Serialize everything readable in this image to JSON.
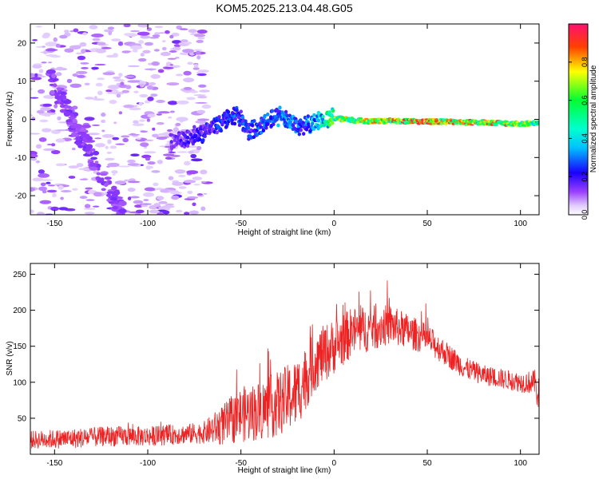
{
  "title": "KOM5.2025.213.04.48.G05",
  "chart_data": [
    {
      "type": "heatmap",
      "xlabel": "Height of straight line (km)",
      "ylabel": "Frequency (Hz)",
      "xlim": [
        -163,
        110
      ],
      "ylim": [
        -25,
        25
      ],
      "xticks": [
        -150,
        -100,
        -50,
        0,
        50,
        100
      ],
      "yticks": [
        -20,
        -10,
        0,
        10,
        20
      ],
      "colorbar": {
        "label": "Normalized spectral amplitude",
        "range": [
          0.0,
          1.0
        ],
        "ticks": [
          0.0,
          0.2,
          0.4,
          0.6,
          0.8
        ],
        "colors": [
          "#ffffff",
          "#cc88ff",
          "#7000ff",
          "#0000ff",
          "#00e5ff",
          "#00ff40",
          "#ffff00",
          "#ff0000",
          "#ff1493"
        ]
      },
      "track": {
        "x": [
          -88,
          -80,
          -72,
          -65,
          -58,
          -52,
          -46,
          -40,
          -34,
          -28,
          -22,
          -18,
          -12,
          -6,
          0,
          10,
          20,
          30,
          40,
          50,
          60,
          70,
          80,
          90,
          100,
          110
        ],
        "frequency": [
          -6,
          -5,
          -4,
          -2,
          0,
          1,
          -3,
          -2,
          0,
          1,
          -1,
          -2,
          -1,
          0,
          0.3,
          -0.2,
          -0.5,
          -0.4,
          -0.5,
          -0.6,
          -0.6,
          -0.8,
          -0.8,
          -1.0,
          -1.2,
          -1.0
        ],
        "amplitude": [
          0.15,
          0.2,
          0.22,
          0.25,
          0.3,
          0.3,
          0.28,
          0.3,
          0.3,
          0.35,
          0.35,
          0.3,
          0.4,
          0.5,
          0.7,
          0.75,
          0.8,
          0.85,
          0.9,
          0.9,
          0.85,
          0.88,
          0.9,
          0.85,
          0.8,
          0.6
        ]
      }
    },
    {
      "type": "line",
      "xlabel": "Height of straight line (km)",
      "ylabel": "SNR (v/v)",
      "xlim": [
        -163,
        110
      ],
      "ylim": [
        0,
        265
      ],
      "xticks": [
        -150,
        -100,
        -50,
        0,
        50,
        100
      ],
      "yticks": [
        50,
        100,
        150,
        200,
        250
      ],
      "color": "#ee2222",
      "envelope": {
        "x": [
          -163,
          -140,
          -120,
          -100,
          -80,
          -70,
          -60,
          -50,
          -40,
          -30,
          -20,
          -10,
          0,
          10,
          20,
          30,
          40,
          50,
          60,
          70,
          80,
          90,
          100,
          108,
          110
        ],
        "mean": [
          20,
          22,
          25,
          25,
          28,
          30,
          40,
          55,
          60,
          70,
          85,
          130,
          150,
          170,
          175,
          180,
          170,
          160,
          140,
          120,
          110,
          105,
          100,
          100,
          80
        ],
        "spread": [
          18,
          20,
          20,
          20,
          20,
          22,
          40,
          55,
          60,
          65,
          70,
          60,
          55,
          50,
          45,
          40,
          35,
          30,
          25,
          22,
          20,
          20,
          20,
          25,
          60
        ]
      }
    }
  ]
}
